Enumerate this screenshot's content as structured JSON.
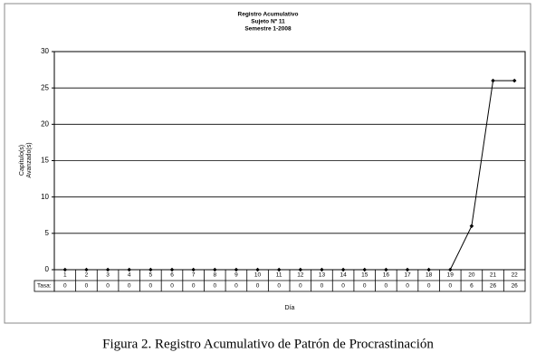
{
  "chart_data": {
    "type": "line",
    "title_lines": [
      "Registro Acumulativo",
      "Sujeto Nº 11",
      "Semestre 1-2008"
    ],
    "ylabel_lines": [
      "Capítulo(s)",
      "Avanzado(s)"
    ],
    "xlabel": "Día",
    "table_label": "Tasa:",
    "categories": [
      "1",
      "2",
      "3",
      "4",
      "5",
      "6",
      "7",
      "8",
      "9",
      "10",
      "11",
      "12",
      "13",
      "14",
      "15",
      "16",
      "17",
      "18",
      "19",
      "20",
      "21",
      "22"
    ],
    "values": [
      0,
      0,
      0,
      0,
      0,
      0,
      0,
      0,
      0,
      0,
      0,
      0,
      0,
      0,
      0,
      0,
      0,
      0,
      0,
      6,
      26,
      26
    ],
    "color": "#000000",
    "ylim": [
      0,
      30
    ],
    "yticks": [
      0,
      5,
      10,
      15,
      20,
      25,
      30
    ],
    "grid": true
  },
  "caption": "Figura 2. Registro Acumulativo de Patrón de Procrastinación"
}
